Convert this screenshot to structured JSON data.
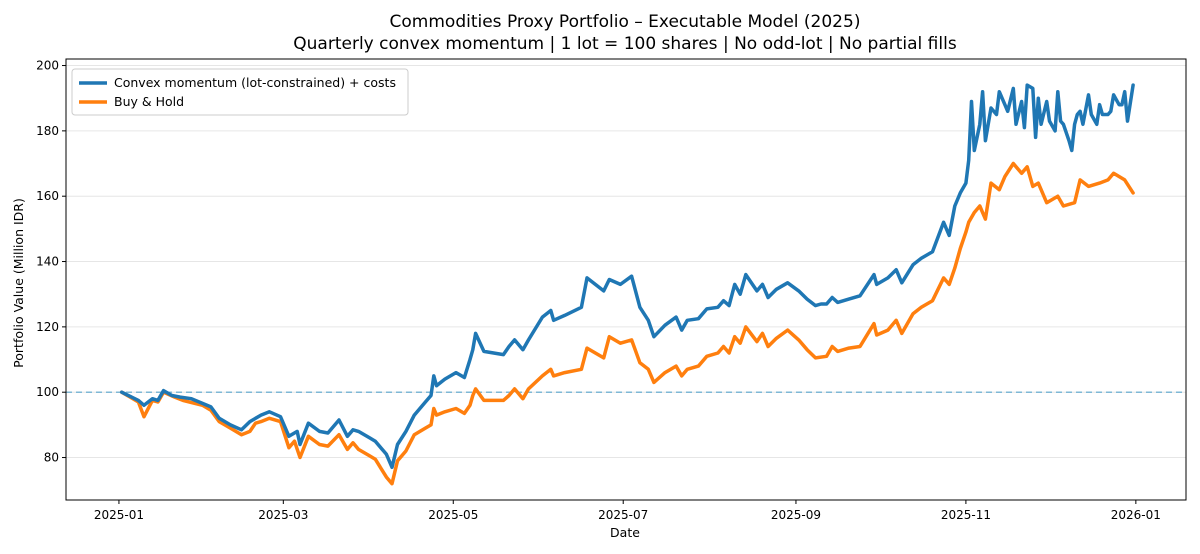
{
  "chart_data": {
    "type": "line",
    "title": "Commodities Proxy Portfolio – Executable Model (2025)",
    "subtitle": "Quarterly convex momentum | 1 lot = 100 shares | No odd-lot | No partial fills",
    "xlabel": "Date",
    "ylabel": "Portfolio Value (Million IDR)",
    "xlim": [
      "2024-12-13",
      "2026-01-19"
    ],
    "ylim": [
      67,
      202
    ],
    "x_ticks": [
      "2025-01",
      "2025-03",
      "2025-05",
      "2025-07",
      "2025-09",
      "2025-11",
      "2026-01"
    ],
    "y_ticks": [
      80,
      100,
      120,
      140,
      160,
      180,
      200
    ],
    "grid": "horizontal",
    "legend_position": "top-left",
    "reference_line": {
      "y": 100,
      "style": "dashed",
      "color": "#7fb8d6"
    },
    "series": [
      {
        "name": "Convex momentum (lot-constrained) + costs",
        "color": "#1f77b4",
        "points": [
          [
            "2025-01-02",
            100
          ],
          [
            "2025-01-08",
            97.5
          ],
          [
            "2025-01-10",
            96
          ],
          [
            "2025-01-13",
            98
          ],
          [
            "2025-01-15",
            97.5
          ],
          [
            "2025-01-17",
            100.5
          ],
          [
            "2025-01-20",
            99
          ],
          [
            "2025-01-23",
            98.5
          ],
          [
            "2025-01-27",
            98
          ],
          [
            "2025-02-03",
            95.5
          ],
          [
            "2025-02-06",
            92
          ],
          [
            "2025-02-10",
            90
          ],
          [
            "2025-02-14",
            88.5
          ],
          [
            "2025-02-17",
            91
          ],
          [
            "2025-02-21",
            93
          ],
          [
            "2025-02-24",
            94
          ],
          [
            "2025-02-28",
            92.5
          ],
          [
            "2025-03-03",
            86.5
          ],
          [
            "2025-03-06",
            88
          ],
          [
            "2025-03-07",
            84
          ],
          [
            "2025-03-10",
            90.5
          ],
          [
            "2025-03-14",
            88
          ],
          [
            "2025-03-17",
            87.5
          ],
          [
            "2025-03-21",
            91.5
          ],
          [
            "2025-03-24",
            86.5
          ],
          [
            "2025-03-26",
            88.5
          ],
          [
            "2025-03-28",
            88
          ],
          [
            "2025-04-01",
            86
          ],
          [
            "2025-04-03",
            85
          ],
          [
            "2025-04-07",
            81
          ],
          [
            "2025-04-09",
            77
          ],
          [
            "2025-04-11",
            84
          ],
          [
            "2025-04-14",
            88
          ],
          [
            "2025-04-17",
            93
          ],
          [
            "2025-04-21",
            97
          ],
          [
            "2025-04-23",
            99
          ],
          [
            "2025-04-24",
            105
          ],
          [
            "2025-04-25",
            102
          ],
          [
            "2025-04-28",
            104
          ],
          [
            "2025-05-02",
            106
          ],
          [
            "2025-05-05",
            104.5
          ],
          [
            "2025-05-07",
            110
          ],
          [
            "2025-05-08",
            113
          ],
          [
            "2025-05-09",
            118
          ],
          [
            "2025-05-12",
            112.5
          ],
          [
            "2025-05-19",
            111.5
          ],
          [
            "2025-05-21",
            114
          ],
          [
            "2025-05-23",
            116
          ],
          [
            "2025-05-26",
            113
          ],
          [
            "2025-05-28",
            116
          ],
          [
            "2025-06-02",
            123
          ],
          [
            "2025-06-05",
            125
          ],
          [
            "2025-06-06",
            122
          ],
          [
            "2025-06-10",
            123.5
          ],
          [
            "2025-06-16",
            126
          ],
          [
            "2025-06-18",
            135
          ],
          [
            "2025-06-24",
            131
          ],
          [
            "2025-06-26",
            134.5
          ],
          [
            "2025-06-30",
            133
          ],
          [
            "2025-07-04",
            135.5
          ],
          [
            "2025-07-07",
            126
          ],
          [
            "2025-07-10",
            122
          ],
          [
            "2025-07-12",
            117
          ],
          [
            "2025-07-16",
            120.5
          ],
          [
            "2025-07-20",
            123
          ],
          [
            "2025-07-22",
            119
          ],
          [
            "2025-07-24",
            122
          ],
          [
            "2025-07-28",
            122.5
          ],
          [
            "2025-07-31",
            125.5
          ],
          [
            "2025-08-04",
            126
          ],
          [
            "2025-08-06",
            128
          ],
          [
            "2025-08-08",
            126.5
          ],
          [
            "2025-08-10",
            133
          ],
          [
            "2025-08-12",
            130
          ],
          [
            "2025-08-14",
            136
          ],
          [
            "2025-08-18",
            131
          ],
          [
            "2025-08-20",
            133
          ],
          [
            "2025-08-22",
            129
          ],
          [
            "2025-08-25",
            131.5
          ],
          [
            "2025-08-29",
            133.5
          ],
          [
            "2025-09-02",
            131
          ],
          [
            "2025-09-05",
            128.5
          ],
          [
            "2025-09-08",
            126.5
          ],
          [
            "2025-09-10",
            127
          ],
          [
            "2025-09-12",
            127
          ],
          [
            "2025-09-14",
            129
          ],
          [
            "2025-09-16",
            127.5
          ],
          [
            "2025-09-20",
            128.5
          ],
          [
            "2025-09-24",
            129.5
          ],
          [
            "2025-09-29",
            136
          ],
          [
            "2025-09-30",
            133
          ],
          [
            "2025-10-04",
            135
          ],
          [
            "2025-10-07",
            137.5
          ],
          [
            "2025-10-09",
            133.5
          ],
          [
            "2025-10-13",
            139
          ],
          [
            "2025-10-16",
            141
          ],
          [
            "2025-10-20",
            143
          ],
          [
            "2025-10-24",
            152
          ],
          [
            "2025-10-26",
            148
          ],
          [
            "2025-10-28",
            157
          ],
          [
            "2025-10-30",
            161
          ],
          [
            "2025-11-01",
            164
          ],
          [
            "2025-11-02",
            171
          ],
          [
            "2025-11-04",
            174
          ],
          [
            "2025-11-06",
            182
          ],
          [
            "2025-11-08",
            177
          ],
          [
            "2025-11-10",
            187
          ],
          [
            "2025-11-13",
            192
          ],
          [
            "2025-11-15",
            188
          ],
          [
            "2025-11-18",
            193
          ],
          [
            "2025-11-21",
            189
          ],
          [
            "2025-11-23",
            194
          ],
          [
            "2025-11-25",
            193
          ],
          [
            "2025-11-27",
            190
          ],
          [
            "2025-11-30",
            189
          ],
          [
            "2025-12-04",
            192
          ],
          [
            "2025-12-06",
            182
          ],
          [
            "2025-12-10",
            182
          ],
          [
            "2025-12-12",
            186
          ],
          [
            "2025-12-15",
            191
          ],
          [
            "2025-12-19",
            188
          ],
          [
            "2025-12-22",
            185
          ],
          [
            "2025-12-24",
            191
          ],
          [
            "2025-12-28",
            192
          ],
          [
            "2025-12-31",
            194
          ],
          [
            "2025-11-03",
            189
          ],
          [
            "2025-11-07",
            192
          ],
          [
            "2025-11-12",
            185
          ],
          [
            "2025-11-16",
            186
          ],
          [
            "2025-11-19",
            182
          ],
          [
            "2025-11-22",
            181
          ],
          [
            "2025-11-26",
            178
          ],
          [
            "2025-11-28",
            182
          ],
          [
            "2025-12-01",
            183
          ],
          [
            "2025-12-03",
            180
          ],
          [
            "2025-12-05",
            183
          ],
          [
            "2025-12-08",
            177
          ],
          [
            "2025-12-09",
            174
          ],
          [
            "2025-12-11",
            185
          ],
          [
            "2025-12-13",
            182
          ],
          [
            "2025-12-16",
            185
          ],
          [
            "2025-12-18",
            182
          ],
          [
            "2025-12-20",
            185
          ],
          [
            "2025-12-23",
            186
          ],
          [
            "2025-12-26",
            188
          ],
          [
            "2025-12-27",
            188
          ],
          [
            "2025-12-29",
            183
          ]
        ]
      },
      {
        "name": "Buy & Hold",
        "color": "#ff7f0e",
        "points": [
          [
            "2025-01-02",
            100
          ],
          [
            "2025-01-06",
            98
          ],
          [
            "2025-01-08",
            97
          ],
          [
            "2025-01-10",
            92.5
          ],
          [
            "2025-01-13",
            97.5
          ],
          [
            "2025-01-15",
            97
          ],
          [
            "2025-01-17",
            100
          ],
          [
            "2025-01-21",
            98.5
          ],
          [
            "2025-01-24",
            97.5
          ],
          [
            "2025-01-31",
            96
          ],
          [
            "2025-02-03",
            94.5
          ],
          [
            "2025-02-06",
            91
          ],
          [
            "2025-02-10",
            89
          ],
          [
            "2025-02-14",
            87
          ],
          [
            "2025-02-17",
            88
          ],
          [
            "2025-02-19",
            90.5
          ],
          [
            "2025-02-21",
            91
          ],
          [
            "2025-02-24",
            92
          ],
          [
            "2025-02-28",
            91
          ],
          [
            "2025-03-03",
            83
          ],
          [
            "2025-03-05",
            85
          ],
          [
            "2025-03-07",
            80
          ],
          [
            "2025-03-10",
            86.5
          ],
          [
            "2025-03-14",
            84
          ],
          [
            "2025-03-17",
            83.5
          ],
          [
            "2025-03-21",
            87
          ],
          [
            "2025-03-24",
            82.5
          ],
          [
            "2025-03-26",
            84.5
          ],
          [
            "2025-03-28",
            82.5
          ],
          [
            "2025-04-01",
            80.5
          ],
          [
            "2025-04-03",
            79.5
          ],
          [
            "2025-04-07",
            74
          ],
          [
            "2025-04-09",
            72
          ],
          [
            "2025-04-11",
            79
          ],
          [
            "2025-04-14",
            82
          ],
          [
            "2025-04-17",
            87
          ],
          [
            "2025-04-21",
            89
          ],
          [
            "2025-04-23",
            90
          ],
          [
            "2025-04-24",
            95
          ],
          [
            "2025-04-25",
            93
          ],
          [
            "2025-04-28",
            94
          ],
          [
            "2025-05-02",
            95
          ],
          [
            "2025-05-05",
            93.5
          ],
          [
            "2025-05-07",
            96
          ],
          [
            "2025-05-08",
            99
          ],
          [
            "2025-05-09",
            101
          ],
          [
            "2025-05-12",
            97.5
          ],
          [
            "2025-05-19",
            97.5
          ],
          [
            "2025-05-21",
            99
          ],
          [
            "2025-05-23",
            101
          ],
          [
            "2025-05-26",
            98
          ],
          [
            "2025-05-28",
            101
          ],
          [
            "2025-06-02",
            105
          ],
          [
            "2025-06-05",
            107
          ],
          [
            "2025-06-06",
            105
          ],
          [
            "2025-06-10",
            106
          ],
          [
            "2025-06-16",
            107
          ],
          [
            "2025-06-18",
            113.5
          ],
          [
            "2025-06-24",
            110.5
          ],
          [
            "2025-06-26",
            117
          ],
          [
            "2025-06-30",
            115
          ],
          [
            "2025-07-04",
            116
          ],
          [
            "2025-07-07",
            109
          ],
          [
            "2025-07-10",
            107
          ],
          [
            "2025-07-12",
            103
          ],
          [
            "2025-07-16",
            106
          ],
          [
            "2025-07-20",
            108
          ],
          [
            "2025-07-22",
            105
          ],
          [
            "2025-07-24",
            107
          ],
          [
            "2025-07-28",
            108
          ],
          [
            "2025-07-31",
            111
          ],
          [
            "2025-08-04",
            112
          ],
          [
            "2025-08-06",
            114
          ],
          [
            "2025-08-08",
            112
          ],
          [
            "2025-08-10",
            117
          ],
          [
            "2025-08-12",
            115
          ],
          [
            "2025-08-14",
            120
          ],
          [
            "2025-08-18",
            115.5
          ],
          [
            "2025-08-20",
            118
          ],
          [
            "2025-08-22",
            114
          ],
          [
            "2025-08-25",
            116.5
          ],
          [
            "2025-08-29",
            119
          ],
          [
            "2025-09-02",
            116
          ],
          [
            "2025-09-05",
            113
          ],
          [
            "2025-09-08",
            110.5
          ],
          [
            "2025-09-12",
            111
          ],
          [
            "2025-09-14",
            114
          ],
          [
            "2025-09-16",
            112.5
          ],
          [
            "2025-09-20",
            113.5
          ],
          [
            "2025-09-24",
            114
          ],
          [
            "2025-09-29",
            121
          ],
          [
            "2025-09-30",
            117.5
          ],
          [
            "2025-10-04",
            119
          ],
          [
            "2025-10-07",
            122
          ],
          [
            "2025-10-09",
            118
          ],
          [
            "2025-10-13",
            124
          ],
          [
            "2025-10-16",
            126
          ],
          [
            "2025-10-20",
            128
          ],
          [
            "2025-10-24",
            135
          ],
          [
            "2025-10-26",
            133
          ],
          [
            "2025-10-28",
            138
          ],
          [
            "2025-10-30",
            144
          ],
          [
            "2025-11-01",
            149
          ],
          [
            "2025-11-02",
            152
          ],
          [
            "2025-11-04",
            155
          ],
          [
            "2025-11-06",
            157
          ],
          [
            "2025-11-08",
            153
          ],
          [
            "2025-11-10",
            164
          ],
          [
            "2025-11-13",
            162
          ],
          [
            "2025-11-15",
            166
          ],
          [
            "2025-11-18",
            170
          ],
          [
            "2025-11-21",
            167
          ],
          [
            "2025-11-23",
            169
          ],
          [
            "2025-11-25",
            163
          ],
          [
            "2025-11-27",
            164
          ],
          [
            "2025-11-30",
            158
          ],
          [
            "2025-12-04",
            160
          ],
          [
            "2025-12-06",
            157
          ],
          [
            "2025-12-10",
            158
          ],
          [
            "2025-12-12",
            165
          ],
          [
            "2025-12-15",
            163
          ],
          [
            "2025-12-19",
            164
          ],
          [
            "2025-12-22",
            165
          ],
          [
            "2025-12-24",
            167
          ],
          [
            "2025-12-28",
            165
          ],
          [
            "2025-12-31",
            161
          ]
        ]
      }
    ]
  }
}
